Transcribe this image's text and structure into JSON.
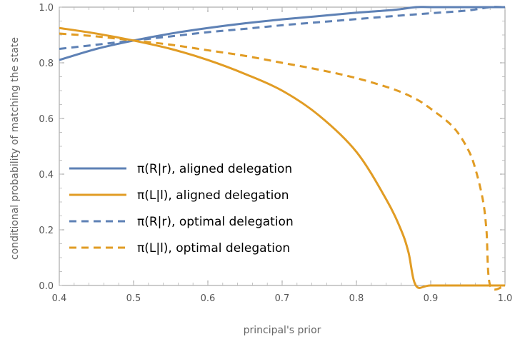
{
  "chart_data": {
    "type": "line",
    "xlabel": "principal's prior",
    "ylabel": "conditional probability of matching the state",
    "xlim": [
      0.4,
      1.0
    ],
    "ylim": [
      0.0,
      1.0
    ],
    "xticks": [
      "0.4",
      "0.5",
      "0.6",
      "0.7",
      "0.8",
      "0.9",
      "1.0"
    ],
    "yticks": [
      "0.0",
      "0.2",
      "0.4",
      "0.6",
      "0.8",
      "1.0"
    ],
    "grid": false,
    "legend_position": "left",
    "colors": {
      "blue": "#5E81B5",
      "orange": "#E19C24"
    },
    "series": [
      {
        "name": "π(R|r), aligned delegation",
        "color": "#5E81B5",
        "dash": "solid",
        "x": [
          0.4,
          0.45,
          0.5,
          0.55,
          0.6,
          0.65,
          0.7,
          0.75,
          0.8,
          0.85,
          0.88,
          0.9,
          0.95,
          1.0
        ],
        "y": [
          0.81,
          0.85,
          0.88,
          0.905,
          0.925,
          0.942,
          0.956,
          0.968,
          0.98,
          0.99,
          1.0,
          1.0,
          1.0,
          1.0
        ]
      },
      {
        "name": "π(L|l), aligned delegation",
        "color": "#E19C24",
        "dash": "solid",
        "x": [
          0.4,
          0.45,
          0.5,
          0.55,
          0.6,
          0.65,
          0.7,
          0.75,
          0.8,
          0.84,
          0.86,
          0.87,
          0.88,
          0.9,
          0.95,
          0.98,
          1.0
        ],
        "y": [
          0.925,
          0.905,
          0.88,
          0.85,
          0.81,
          0.76,
          0.7,
          0.61,
          0.48,
          0.31,
          0.2,
          0.12,
          0.0,
          0.0,
          0.0,
          0.0,
          0.0
        ]
      },
      {
        "name": "π(R|r), optimal delegation",
        "color": "#5E81B5",
        "dash": "dashed",
        "x": [
          0.4,
          0.45,
          0.5,
          0.55,
          0.6,
          0.65,
          0.7,
          0.75,
          0.8,
          0.85,
          0.9,
          0.95,
          0.98,
          1.0
        ],
        "y": [
          0.85,
          0.865,
          0.88,
          0.895,
          0.91,
          0.922,
          0.935,
          0.946,
          0.957,
          0.968,
          0.978,
          0.988,
          1.0,
          1.0
        ]
      },
      {
        "name": "π(L|l), optimal delegation",
        "color": "#E19C24",
        "dash": "dashed",
        "x": [
          0.4,
          0.45,
          0.5,
          0.55,
          0.6,
          0.65,
          0.7,
          0.75,
          0.8,
          0.85,
          0.88,
          0.9,
          0.93,
          0.95,
          0.96,
          0.97,
          0.975,
          0.98,
          1.0
        ],
        "y": [
          0.905,
          0.895,
          0.88,
          0.865,
          0.845,
          0.825,
          0.8,
          0.775,
          0.745,
          0.705,
          0.67,
          0.635,
          0.57,
          0.49,
          0.42,
          0.31,
          0.2,
          0.0,
          0.0
        ]
      }
    ]
  }
}
